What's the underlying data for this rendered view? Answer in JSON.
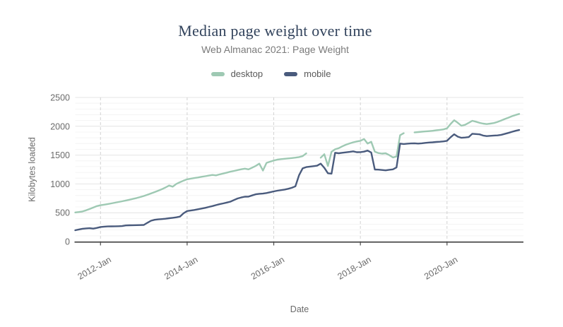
{
  "chart_data": {
    "type": "line",
    "title": "Median page weight over time",
    "subtitle": "Web Almanac 2021: Page Weight",
    "xlabel": "Date",
    "ylabel": "Kilobytes loaded",
    "x_start": "2011-06",
    "x_interval": "month",
    "x_end": "2021-09",
    "ylim": [
      0,
      2500
    ],
    "yticks": [
      0,
      500,
      1000,
      1500,
      2000,
      2500
    ],
    "xticks": [
      {
        "date": "2012-01",
        "label": "2012-Jan"
      },
      {
        "date": "2014-01",
        "label": "2014-Jan"
      },
      {
        "date": "2016-01",
        "label": "2016-Jan"
      },
      {
        "date": "2018-01",
        "label": "2018-Jan"
      },
      {
        "date": "2020-01",
        "label": "2020-Jan"
      }
    ],
    "grid": {
      "horizontal_major": true,
      "horizontal_minor_every": 100,
      "vertical_dashed": true
    },
    "legend_position": "top-center",
    "axis_color": "#4a4a4a",
    "tick_label_color": "#6b6b6b",
    "series": [
      {
        "name": "desktop",
        "color": "#9ec9b3",
        "values": [
          505,
          512,
          522,
          542,
          565,
          590,
          615,
          630,
          640,
          651,
          662,
          674,
          686,
          699,
          712,
          726,
          740,
          755,
          772,
          790,
          812,
          835,
          858,
          882,
          908,
          938,
          972,
          952,
          1000,
          1030,
          1056,
          1080,
          1092,
          1102,
          1112,
          1124,
          1134,
          1144,
          1156,
          1148,
          1166,
          1180,
          1196,
          1212,
          1226,
          1240,
          1254,
          1265,
          1252,
          1282,
          1312,
          1352,
          1232,
          1365,
          1386,
          1406,
          1422,
          1430,
          1436,
          1442,
          1448,
          1456,
          1466,
          1482,
          1530,
          null,
          null,
          null,
          1455,
          1516,
          1311,
          1557,
          1600,
          1620,
          1652,
          1680,
          1702,
          1722,
          1736,
          1748,
          1780,
          1700,
          1732,
          1560,
          1536,
          1526,
          1532,
          1500,
          1460,
          1476,
          1845,
          1880,
          null,
          null,
          1895,
          1900,
          1906,
          1911,
          1916,
          1922,
          1930,
          1938,
          1946,
          1965,
          2040,
          2105,
          2060,
          2010,
          2026,
          2060,
          2096,
          2080,
          2060,
          2046,
          2038,
          2046,
          2056,
          2076,
          2100,
          2126,
          2150,
          2175,
          2196,
          2215
        ]
      },
      {
        "name": "mobile",
        "color": "#4a5b7d",
        "values": [
          196,
          210,
          222,
          228,
          232,
          224,
          236,
          252,
          258,
          262,
          264,
          265,
          266,
          268,
          280,
          282,
          283,
          284,
          286,
          288,
          326,
          362,
          377,
          385,
          390,
          396,
          405,
          412,
          420,
          432,
          490,
          530,
          538,
          548,
          560,
          572,
          585,
          600,
          615,
          632,
          648,
          662,
          676,
          692,
          720,
          748,
          765,
          778,
          780,
          800,
          820,
          828,
          832,
          842,
          856,
          870,
          882,
          892,
          902,
          915,
          932,
          958,
          1150,
          1270,
          1292,
          1300,
          1308,
          1316,
          1352,
          1280,
          1185,
          1178,
          1540,
          1532,
          1540,
          1548,
          1555,
          1565,
          1550,
          1552,
          1560,
          1578,
          1545,
          1250,
          1248,
          1242,
          1235,
          1245,
          1252,
          1285,
          1700,
          1692,
          1698,
          1702,
          1705,
          1700,
          1705,
          1712,
          1718,
          1722,
          1728,
          1732,
          1738,
          1748,
          1810,
          1862,
          1820,
          1800,
          1805,
          1812,
          1870,
          1865,
          1860,
          1840,
          1830,
          1835,
          1840,
          1842,
          1852,
          1868,
          1885,
          1905,
          1922,
          1935
        ]
      }
    ]
  }
}
